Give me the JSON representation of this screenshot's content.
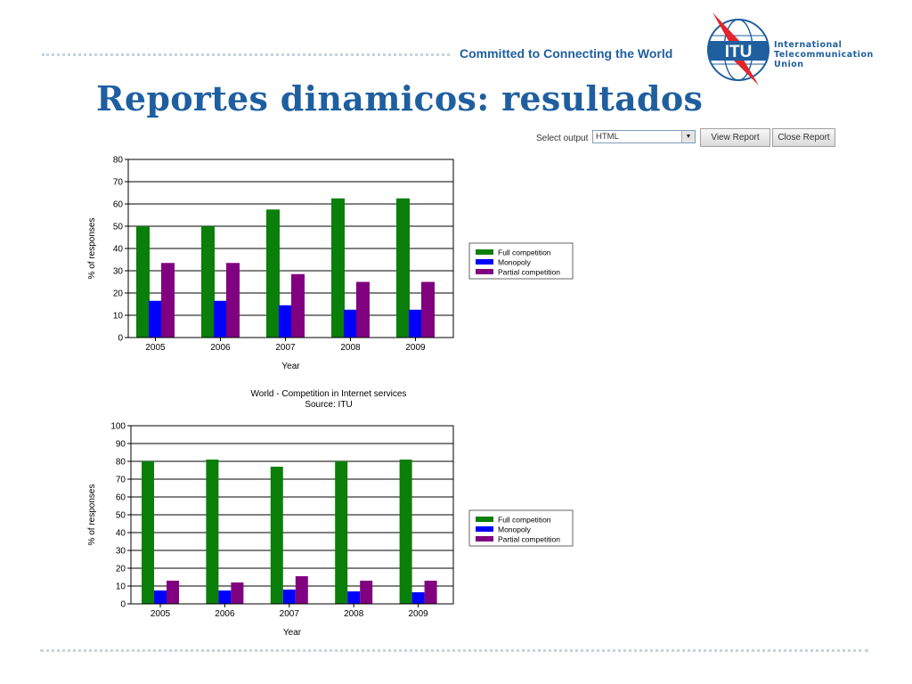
{
  "header": {
    "tagline": "Committed to Connecting the World",
    "org_line1": "International",
    "org_line2": "Telecommunication",
    "org_line3": "Union",
    "logo_text": "ITU",
    "title": "Reportes dinamicos: resultados"
  },
  "toolbar": {
    "select_label": "Select output",
    "select_value": "HTML",
    "view_button": "View Report",
    "close_button": "Close Report"
  },
  "colors": {
    "brand_blue": "#1f5fa0",
    "full_competition": "#0a7f0a",
    "monopoly": "#0000ff",
    "partial_competition": "#800080"
  },
  "chart_data": [
    {
      "type": "bar",
      "title": "",
      "subtitle": "",
      "categories": [
        "2005",
        "2006",
        "2007",
        "2008",
        "2009"
      ],
      "series": [
        {
          "name": "Full competition",
          "values": [
            50,
            50,
            57.5,
            62.5,
            62.5
          ],
          "color": "#0a7f0a"
        },
        {
          "name": "Monopoly",
          "values": [
            16.5,
            16.5,
            14.5,
            12.5,
            12.5
          ],
          "color": "#0000ff"
        },
        {
          "name": "Partial competition",
          "values": [
            33.5,
            33.5,
            28.5,
            25,
            25
          ],
          "color": "#800080"
        }
      ],
      "xlabel": "Year",
      "ylabel": "% of responses",
      "ylim": [
        0,
        80
      ],
      "yticks": [
        0,
        10,
        20,
        30,
        40,
        50,
        60,
        70,
        80
      ],
      "grid": true,
      "legend": "right"
    },
    {
      "type": "bar",
      "title": "World - Competition in Internet services",
      "subtitle": "Source: ITU",
      "categories": [
        "2005",
        "2006",
        "2007",
        "2008",
        "2009"
      ],
      "series": [
        {
          "name": "Full competition",
          "values": [
            80,
            81,
            77,
            80,
            81
          ],
          "color": "#0a7f0a"
        },
        {
          "name": "Monopoly",
          "values": [
            7.5,
            7.5,
            8,
            7,
            6.5
          ],
          "color": "#0000ff"
        },
        {
          "name": "Partial competition",
          "values": [
            13,
            12,
            15.5,
            13,
            13
          ],
          "color": "#800080"
        }
      ],
      "xlabel": "Year",
      "ylabel": "% of responses",
      "ylim": [
        0,
        100
      ],
      "yticks": [
        0,
        10,
        20,
        30,
        40,
        50,
        60,
        70,
        80,
        90,
        100
      ],
      "grid": true,
      "legend": "right"
    }
  ]
}
